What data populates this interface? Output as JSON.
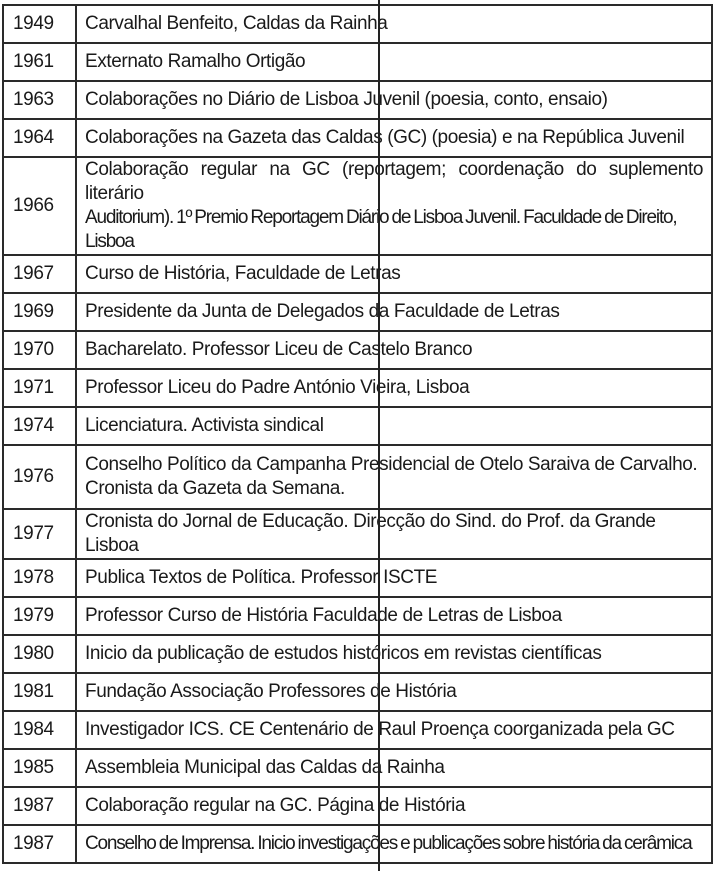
{
  "rows": [
    {
      "year": "1949",
      "text": "Carvalhal Benfeito, Caldas da Rainha"
    },
    {
      "year": "1961",
      "text": "Externato Ramalho Ortigão"
    },
    {
      "year": "1963",
      "text": "Colaborações no Diário de Lisboa Juvenil (poesia, conto, ensaio)"
    },
    {
      "year": "1964",
      "text": "Colaborações na Gazeta das Caldas (GC) (poesia) e na República Juvenil"
    },
    {
      "year": "1966",
      "text": "Colaboração regular na GC (reportagem; coordenação do suplemento literário",
      "text2": "Auditorium). 1º Premio Reportagem Diário de Lisboa Juvenil. Faculdade de Direito, Lisboa"
    },
    {
      "year": "1967",
      "text": "Curso de História, Faculdade de Letras"
    },
    {
      "year": "1969",
      "text": "Presidente da Junta de Delegados da Faculdade de Letras"
    },
    {
      "year": "1970",
      "text": "Bacharelato. Professor Liceu de Castelo Branco"
    },
    {
      "year": "1971",
      "text": "Professor Liceu do Padre António Vieira, Lisboa"
    },
    {
      "year": "1974",
      "text": "Licenciatura. Activista sindical"
    },
    {
      "year": "1976",
      "text": "Conselho Político da Campanha Presidencial de Otelo Saraiva de Carvalho.",
      "text2": "Cronista da Gazeta da Semana."
    },
    {
      "year": "1977",
      "text": "Cronista do Jornal de Educação. Direcção do Sind. do Prof. da Grande Lisboa"
    },
    {
      "year": "1978",
      "text": "Publica Textos de Política. Professor ISCTE"
    },
    {
      "year": "1979",
      "text": "Professor Curso de História Faculdade de Letras de Lisboa"
    },
    {
      "year": "1980",
      "text": "Inicio da publicação de estudos históricos em revistas científicas"
    },
    {
      "year": "1981",
      "text": "Fundação Associação Professores de História"
    },
    {
      "year": "1984",
      "text": "Investigador ICS. CE Centenário de Raul Proença coorganizada pela GC"
    },
    {
      "year": "1985",
      "text": "Assembleia Municipal das Caldas da Rainha"
    },
    {
      "year": "1987",
      "text": "Colaboração regular na GC. Página de História"
    },
    {
      "year": "1987",
      "text": "Conselho de Imprensa. Inicio investigações e publicações sobre história da cerâmica"
    }
  ]
}
